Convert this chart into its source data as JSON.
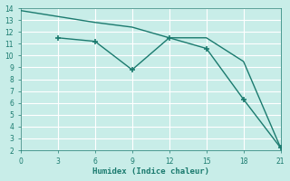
{
  "xlabel": "Humidex (Indice chaleur)",
  "line1": {
    "x": [
      0,
      3,
      6,
      9,
      12,
      15,
      18,
      21
    ],
    "y": [
      13.8,
      13.3,
      12.8,
      12.4,
      11.5,
      11.5,
      9.5,
      2.2
    ],
    "color": "#1a7a6e",
    "linewidth": 1.0,
    "linestyle": "-"
  },
  "line2": {
    "x": [
      3,
      6,
      9,
      12,
      15,
      18,
      21
    ],
    "y": [
      11.5,
      11.2,
      8.8,
      11.5,
      10.6,
      6.3,
      2.2
    ],
    "color": "#1a7a6e",
    "linewidth": 1.0,
    "linestyle": "-",
    "marker": "+"
  },
  "xlim": [
    0,
    21
  ],
  "ylim": [
    2,
    14
  ],
  "xticks": [
    0,
    3,
    6,
    9,
    12,
    15,
    18,
    21
  ],
  "yticks": [
    2,
    3,
    4,
    5,
    6,
    7,
    8,
    9,
    10,
    11,
    12,
    13,
    14
  ],
  "bg_color": "#c8ede8",
  "grid_major_color": "#ffffff",
  "grid_minor_color": "#daf0ec",
  "text_color": "#1a7a6e",
  "tick_labelsize": 5.5,
  "xlabel_fontsize": 6.5
}
